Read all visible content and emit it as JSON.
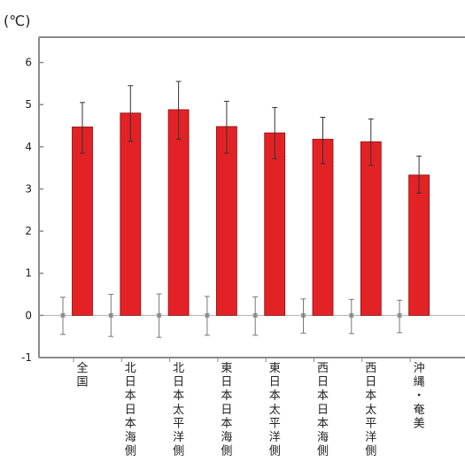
{
  "chart_data": {
    "type": "bar",
    "unit_label": "(℃)",
    "categories": [
      "全国",
      "北日本日本海側",
      "北日本太平洋側",
      "東日本日本海側",
      "東日本太平洋側",
      "西日本日本海側",
      "西日本太平洋側",
      "沖縄・奄美"
    ],
    "series": [
      {
        "values": [
          0.0,
          0.0,
          0.0,
          0.0,
          0.0,
          0.0,
          0.0,
          0.0
        ],
        "error_low": [
          -0.45,
          -0.5,
          -0.52,
          -0.47,
          -0.47,
          -0.42,
          -0.43,
          -0.41
        ],
        "error_high": [
          0.43,
          0.5,
          0.51,
          0.45,
          0.44,
          0.39,
          0.38,
          0.36
        ],
        "color": "#9a9a9a"
      },
      {
        "values": [
          4.47,
          4.8,
          4.88,
          4.48,
          4.33,
          4.18,
          4.12,
          3.33
        ],
        "error_low": [
          3.85,
          4.13,
          4.18,
          3.85,
          3.72,
          3.6,
          3.56,
          2.9
        ],
        "error_high": [
          5.05,
          5.45,
          5.55,
          5.08,
          4.93,
          4.7,
          4.66,
          3.78
        ],
        "color": "#e32226"
      }
    ],
    "yticks": [
      -1,
      0,
      1,
      2,
      3,
      4,
      5,
      6
    ],
    "ylim": [
      -1,
      6.6
    ],
    "xlabel": "",
    "ylabel": "",
    "grid": false,
    "legend": "none",
    "axis_color": "#8a8a8a",
    "zero_line_color": "#b0b0b0"
  }
}
